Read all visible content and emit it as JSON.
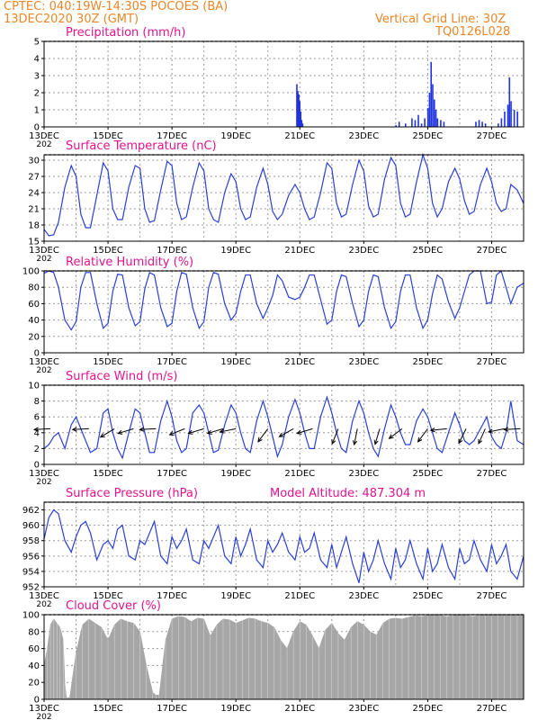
{
  "header": {
    "line1": "CPTEC:   040:19W-14:30S   POCOES (BA)",
    "line2": "13DEC2020 30Z (GMT)",
    "grid_note": "Vertical Grid Line: 30Z",
    "code": "TQ0126L028"
  },
  "colors": {
    "header_text": "#e8862a",
    "panel_title": "#e0148c",
    "series_line": "#2a3fd6",
    "precip_bar": "#1f33e0",
    "cloud_fill": "#a6a6a6",
    "wind_arrow": "#000000"
  },
  "x_axis": {
    "ticks": [
      "13DEC",
      "15DEC",
      "17DEC",
      "19DEC",
      "21DEC",
      "23DEC",
      "25DEC",
      "27DEC"
    ],
    "tick_sublabel": "202"
  },
  "chart_data": [
    {
      "id": "precip",
      "type": "bar",
      "title": "Precipitation (mm/h)",
      "ylim": [
        0,
        5
      ],
      "yticks": [
        0,
        1,
        2,
        3,
        4,
        5
      ],
      "bars": [
        [
          7.9,
          2.5
        ],
        [
          7.93,
          2.1
        ],
        [
          7.96,
          1.9
        ],
        [
          7.99,
          1.5
        ],
        [
          8.02,
          0.9
        ],
        [
          8.05,
          0.4
        ],
        [
          8.08,
          0.2
        ],
        [
          11.0,
          0.1
        ],
        [
          11.1,
          0.3
        ],
        [
          11.3,
          0.2
        ],
        [
          11.5,
          0.5
        ],
        [
          11.6,
          0.4
        ],
        [
          11.7,
          0.7
        ],
        [
          11.8,
          0.2
        ],
        [
          11.9,
          0.5
        ],
        [
          12.0,
          1.1
        ],
        [
          12.05,
          2.0
        ],
        [
          12.1,
          3.8
        ],
        [
          12.15,
          2.5
        ],
        [
          12.2,
          1.6
        ],
        [
          12.25,
          1.0
        ],
        [
          12.3,
          0.5
        ],
        [
          12.4,
          0.4
        ],
        [
          12.5,
          0.3
        ],
        [
          13.5,
          0.3
        ],
        [
          13.6,
          0.4
        ],
        [
          13.7,
          0.3
        ],
        [
          13.8,
          0.2
        ],
        [
          14.2,
          0.2
        ],
        [
          14.3,
          0.5
        ],
        [
          14.4,
          0.9
        ],
        [
          14.5,
          1.3
        ],
        [
          14.55,
          2.9
        ],
        [
          14.6,
          1.5
        ],
        [
          14.7,
          1.0
        ],
        [
          14.8,
          0.9
        ]
      ]
    },
    {
      "id": "temp",
      "type": "line",
      "title": "Surface Temperature (nC)",
      "ylim": [
        15,
        31
      ],
      "yticks": [
        15,
        18,
        21,
        24,
        27,
        30
      ],
      "x": [
        0,
        0.15,
        0.3,
        0.45,
        0.65,
        0.85,
        1.0,
        1.15,
        1.3,
        1.45,
        1.65,
        1.85,
        2.0,
        2.15,
        2.3,
        2.45,
        2.65,
        2.85,
        3.0,
        3.15,
        3.3,
        3.45,
        3.65,
        3.85,
        4.0,
        4.15,
        4.3,
        4.45,
        4.65,
        4.85,
        5.0,
        5.15,
        5.3,
        5.45,
        5.65,
        5.85,
        6.0,
        6.15,
        6.3,
        6.45,
        6.65,
        6.85,
        7.0,
        7.15,
        7.3,
        7.45,
        7.65,
        7.85,
        8.0,
        8.15,
        8.3,
        8.45,
        8.65,
        8.85,
        9.0,
        9.15,
        9.3,
        9.45,
        9.65,
        9.85,
        10.0,
        10.15,
        10.3,
        10.45,
        10.65,
        10.85,
        11.0,
        11.15,
        11.3,
        11.45,
        11.65,
        11.85,
        12.0,
        12.15,
        12.3,
        12.45,
        12.65,
        12.85,
        13.0,
        13.15,
        13.3,
        13.45,
        13.65,
        13.85,
        14.0,
        14.15,
        14.3,
        14.45,
        14.6,
        14.8,
        15.0
      ],
      "y": [
        17.2,
        16.0,
        16.2,
        18.5,
        25.0,
        29.0,
        27.0,
        20.0,
        17.5,
        17.5,
        23.5,
        29.5,
        28.0,
        21.0,
        19.0,
        19.0,
        25.0,
        29.0,
        28.5,
        21.0,
        18.5,
        18.8,
        24.5,
        29.8,
        29.0,
        22.0,
        19.0,
        19.5,
        25.0,
        29.5,
        28.0,
        21.0,
        19.0,
        18.5,
        24.0,
        27.5,
        26.0,
        21.0,
        19.0,
        19.5,
        25.0,
        28.5,
        25.5,
        20.5,
        19.0,
        20.0,
        23.5,
        25.5,
        24.0,
        21.0,
        19.0,
        19.5,
        24.0,
        29.5,
        28.5,
        22.0,
        19.5,
        20.0,
        25.5,
        30.0,
        28.0,
        21.5,
        19.5,
        20.0,
        26.5,
        30.5,
        29.0,
        22.0,
        19.5,
        20.0,
        26.0,
        31.0,
        28.5,
        22.0,
        19.5,
        21.0,
        26.0,
        28.5,
        26.5,
        22.5,
        20.0,
        20.5,
        25.5,
        28.5,
        26.0,
        22.0,
        20.5,
        21.0,
        25.5,
        24.5,
        22.0
      ]
    },
    {
      "id": "rh",
      "type": "line",
      "title": "Relative Humidity (%)",
      "ylim": [
        0,
        100
      ],
      "yticks": [
        0,
        20,
        40,
        60,
        80,
        100
      ],
      "x": [
        0,
        0.15,
        0.3,
        0.45,
        0.65,
        0.85,
        1.0,
        1.15,
        1.3,
        1.45,
        1.65,
        1.85,
        2.0,
        2.15,
        2.3,
        2.45,
        2.65,
        2.85,
        3.0,
        3.15,
        3.3,
        3.45,
        3.65,
        3.85,
        4.0,
        4.15,
        4.3,
        4.45,
        4.65,
        4.85,
        5.0,
        5.15,
        5.3,
        5.45,
        5.65,
        5.85,
        6.0,
        6.15,
        6.3,
        6.45,
        6.65,
        6.85,
        7.0,
        7.15,
        7.3,
        7.45,
        7.65,
        7.85,
        8.0,
        8.15,
        8.3,
        8.45,
        8.65,
        8.85,
        9.0,
        9.15,
        9.3,
        9.45,
        9.65,
        9.85,
        10.0,
        10.15,
        10.3,
        10.45,
        10.65,
        10.85,
        11.0,
        11.15,
        11.3,
        11.45,
        11.65,
        11.85,
        12.0,
        12.15,
        12.3,
        12.45,
        12.65,
        12.85,
        13.0,
        13.15,
        13.3,
        13.45,
        13.65,
        13.85,
        14.0,
        14.15,
        14.3,
        14.45,
        14.6,
        14.8,
        15.0
      ],
      "y": [
        97,
        100,
        98,
        80,
        40,
        28,
        38,
        80,
        98,
        98,
        60,
        30,
        36,
        75,
        96,
        95,
        55,
        33,
        38,
        78,
        98,
        95,
        55,
        32,
        36,
        75,
        98,
        96,
        55,
        30,
        38,
        80,
        98,
        96,
        60,
        40,
        48,
        75,
        95,
        95,
        60,
        42,
        55,
        70,
        95,
        88,
        68,
        65,
        68,
        80,
        95,
        95,
        65,
        35,
        40,
        75,
        95,
        93,
        60,
        32,
        40,
        75,
        95,
        93,
        55,
        30,
        38,
        75,
        95,
        95,
        55,
        30,
        40,
        72,
        95,
        90,
        62,
        42,
        55,
        75,
        95,
        100,
        100,
        60,
        62,
        95,
        100,
        80,
        60,
        80,
        85
      ]
    },
    {
      "id": "wind",
      "type": "line",
      "title": "Surface Wind (m/s)",
      "ylim": [
        0,
        10
      ],
      "yticks": [
        0,
        2,
        4,
        6,
        8,
        10
      ],
      "x": [
        0,
        0.15,
        0.3,
        0.45,
        0.65,
        0.85,
        1.0,
        1.15,
        1.3,
        1.45,
        1.65,
        1.85,
        2.0,
        2.15,
        2.3,
        2.45,
        2.65,
        2.85,
        3.0,
        3.15,
        3.3,
        3.45,
        3.65,
        3.85,
        4.0,
        4.15,
        4.3,
        4.45,
        4.65,
        4.85,
        5.0,
        5.15,
        5.3,
        5.45,
        5.65,
        5.85,
        6.0,
        6.15,
        6.3,
        6.45,
        6.65,
        6.85,
        7.0,
        7.15,
        7.3,
        7.45,
        7.65,
        7.85,
        8.0,
        8.15,
        8.3,
        8.45,
        8.65,
        8.85,
        9.0,
        9.15,
        9.3,
        9.45,
        9.65,
        9.85,
        10.0,
        10.15,
        10.3,
        10.45,
        10.65,
        10.85,
        11.0,
        11.15,
        11.3,
        11.45,
        11.65,
        11.85,
        12.0,
        12.15,
        12.3,
        12.45,
        12.65,
        12.85,
        13.0,
        13.15,
        13.3,
        13.45,
        13.65,
        13.85,
        14.0,
        14.15,
        14.3,
        14.45,
        14.6,
        14.8,
        15.0
      ],
      "y": [
        2.0,
        2.5,
        3.5,
        4.0,
        2.0,
        5.0,
        6.0,
        4.5,
        3.0,
        1.5,
        2.0,
        6.5,
        7.0,
        4.0,
        2.0,
        0.8,
        4.0,
        7.0,
        6.5,
        4.0,
        1.5,
        1.5,
        5.5,
        8.0,
        6.0,
        3.0,
        1.5,
        2.0,
        6.5,
        7.5,
        6.5,
        4.0,
        1.5,
        1.8,
        5.0,
        7.5,
        6.5,
        4.0,
        2.0,
        1.5,
        5.5,
        8.0,
        6.0,
        3.5,
        1.0,
        2.5,
        6.0,
        8.2,
        6.5,
        4.0,
        2.0,
        2.0,
        6.0,
        8.5,
        6.5,
        4.0,
        2.0,
        1.5,
        5.5,
        8.0,
        6.5,
        4.0,
        2.0,
        1.0,
        4.5,
        7.5,
        6.0,
        4.0,
        2.5,
        2.5,
        5.5,
        7.0,
        6.0,
        4.0,
        2.0,
        1.5,
        4.0,
        6.5,
        5.0,
        3.0,
        2.5,
        3.0,
        4.5,
        6.0,
        3.5,
        2.5,
        2.0,
        4.0,
        8.0,
        3.0,
        2.5
      ],
      "arrows": [
        {
          "x": 0.2,
          "dx": -1,
          "dy": 0.05
        },
        {
          "x": 1.4,
          "dx": -1,
          "dy": 0.05
        },
        {
          "x": 2.2,
          "dx": -1,
          "dy": 0.6
        },
        {
          "x": 2.8,
          "dx": -1,
          "dy": 0.3
        },
        {
          "x": 3.5,
          "dx": -1,
          "dy": 0.05
        },
        {
          "x": 4.4,
          "dx": -1,
          "dy": 0.4
        },
        {
          "x": 5.0,
          "dx": -1,
          "dy": 0.3
        },
        {
          "x": 5.6,
          "dx": -1,
          "dy": 0.3
        },
        {
          "x": 6.0,
          "dx": -1,
          "dy": 0.2
        },
        {
          "x": 7.0,
          "dx": -0.6,
          "dy": 0.8
        },
        {
          "x": 7.8,
          "dx": -0.9,
          "dy": 0.5
        },
        {
          "x": 8.4,
          "dx": -1,
          "dy": 0.3
        },
        {
          "x": 9.2,
          "dx": -0.4,
          "dy": 1
        },
        {
          "x": 9.8,
          "dx": -0.2,
          "dy": 1
        },
        {
          "x": 10.5,
          "dx": -0.3,
          "dy": 1
        },
        {
          "x": 11.2,
          "dx": -0.8,
          "dy": 0.6
        },
        {
          "x": 12.0,
          "dx": -0.6,
          "dy": 0.8
        },
        {
          "x": 12.6,
          "dx": -1,
          "dy": 0.1
        },
        {
          "x": 13.2,
          "dx": -0.4,
          "dy": 0.8
        },
        {
          "x": 13.8,
          "dx": -0.4,
          "dy": 0.9
        },
        {
          "x": 14.4,
          "dx": -1,
          "dy": 0.2
        },
        {
          "x": 14.9,
          "dx": -1,
          "dy": 0.05
        }
      ]
    },
    {
      "id": "pressure",
      "type": "line",
      "title": "Surface Pressure (hPa)",
      "annotation": "Model Altitude: 487.304 m",
      "ylim": [
        952,
        963
      ],
      "yticks": [
        952,
        954,
        956,
        958,
        960,
        962
      ],
      "x": [
        0,
        0.15,
        0.3,
        0.45,
        0.65,
        0.85,
        1.0,
        1.15,
        1.3,
        1.45,
        1.65,
        1.85,
        2.0,
        2.15,
        2.3,
        2.45,
        2.65,
        2.85,
        3.0,
        3.15,
        3.3,
        3.45,
        3.65,
        3.85,
        4.0,
        4.15,
        4.3,
        4.45,
        4.65,
        4.85,
        5.0,
        5.15,
        5.3,
        5.45,
        5.65,
        5.85,
        6.0,
        6.15,
        6.3,
        6.45,
        6.65,
        6.85,
        7.0,
        7.15,
        7.3,
        7.45,
        7.65,
        7.85,
        8.0,
        8.15,
        8.3,
        8.45,
        8.65,
        8.85,
        9.0,
        9.15,
        9.3,
        9.45,
        9.65,
        9.85,
        10.0,
        10.15,
        10.3,
        10.45,
        10.65,
        10.85,
        11.0,
        11.15,
        11.3,
        11.45,
        11.65,
        11.85,
        12.0,
        12.15,
        12.3,
        12.45,
        12.65,
        12.85,
        13.0,
        13.15,
        13.3,
        13.45,
        13.65,
        13.85,
        14.0,
        14.15,
        14.3,
        14.45,
        14.6,
        14.8,
        15.0
      ],
      "y": [
        958.2,
        961.0,
        962.0,
        961.5,
        958.0,
        956.5,
        958.5,
        960.0,
        960.5,
        959.0,
        955.5,
        957.5,
        958.0,
        957.0,
        959.5,
        960.0,
        956.0,
        955.5,
        958.0,
        957.5,
        959.0,
        960.5,
        956.0,
        955.0,
        958.5,
        957.0,
        958.0,
        959.5,
        955.5,
        955.0,
        958.0,
        957.0,
        958.5,
        960.0,
        956.0,
        955.0,
        958.5,
        956.0,
        957.5,
        959.5,
        955.5,
        954.5,
        958.0,
        956.5,
        957.5,
        959.0,
        956.5,
        955.5,
        958.5,
        956.5,
        957.0,
        959.0,
        955.5,
        954.5,
        957.5,
        954.5,
        956.5,
        958.5,
        955.0,
        952.5,
        956.5,
        954.0,
        955.5,
        958.0,
        955.0,
        953.0,
        957.0,
        954.5,
        955.5,
        958.0,
        955.0,
        953.0,
        957.0,
        954.0,
        955.0,
        957.5,
        954.5,
        953.0,
        957.0,
        955.0,
        955.5,
        958.0,
        955.5,
        954.0,
        957.5,
        955.0,
        956.0,
        957.5,
        954.0,
        953.0,
        956.0
      ]
    },
    {
      "id": "cloud",
      "type": "area",
      "title": "Cloud Cover (%)",
      "ylim": [
        0,
        100
      ],
      "yticks": [
        0,
        20,
        40,
        60,
        80,
        100
      ],
      "x": [
        0,
        0.1,
        0.2,
        0.3,
        0.4,
        0.5,
        0.6,
        0.65,
        0.7,
        0.75,
        0.8,
        1.0,
        1.2,
        1.4,
        1.6,
        1.8,
        2.0,
        2.2,
        2.4,
        2.6,
        2.8,
        3.0,
        3.2,
        3.4,
        3.5,
        3.6,
        3.8,
        4.0,
        4.2,
        4.4,
        4.6,
        4.8,
        5.0,
        5.2,
        5.4,
        5.6,
        5.8,
        6.0,
        6.2,
        6.4,
        6.6,
        6.8,
        7.0,
        7.2,
        7.4,
        7.6,
        7.8,
        8.0,
        8.2,
        8.4,
        8.6,
        8.8,
        9.0,
        9.2,
        9.4,
        9.6,
        9.8,
        10.0,
        10.2,
        10.4,
        10.6,
        10.8,
        11.0,
        11.2,
        11.4,
        11.6,
        11.8,
        12.0,
        12.2,
        12.4,
        12.6,
        12.8,
        13.0,
        13.2,
        13.4,
        13.6,
        13.8,
        14.0,
        14.2,
        14.4,
        14.6,
        14.8,
        15.0
      ],
      "y": [
        40,
        60,
        88,
        95,
        90,
        85,
        70,
        20,
        2,
        2,
        2,
        55,
        88,
        95,
        90,
        85,
        70,
        88,
        95,
        92,
        90,
        80,
        40,
        8,
        5,
        5,
        70,
        95,
        98,
        97,
        92,
        96,
        95,
        75,
        88,
        95,
        94,
        90,
        93,
        96,
        95,
        92,
        90,
        85,
        70,
        60,
        80,
        92,
        88,
        75,
        60,
        82,
        90,
        78,
        70,
        85,
        92,
        88,
        80,
        76,
        90,
        95,
        96,
        95,
        97,
        99,
        98,
        99,
        99,
        99,
        98,
        99,
        99,
        99,
        98,
        99,
        99,
        99,
        99,
        99,
        99,
        99,
        99
      ]
    }
  ]
}
